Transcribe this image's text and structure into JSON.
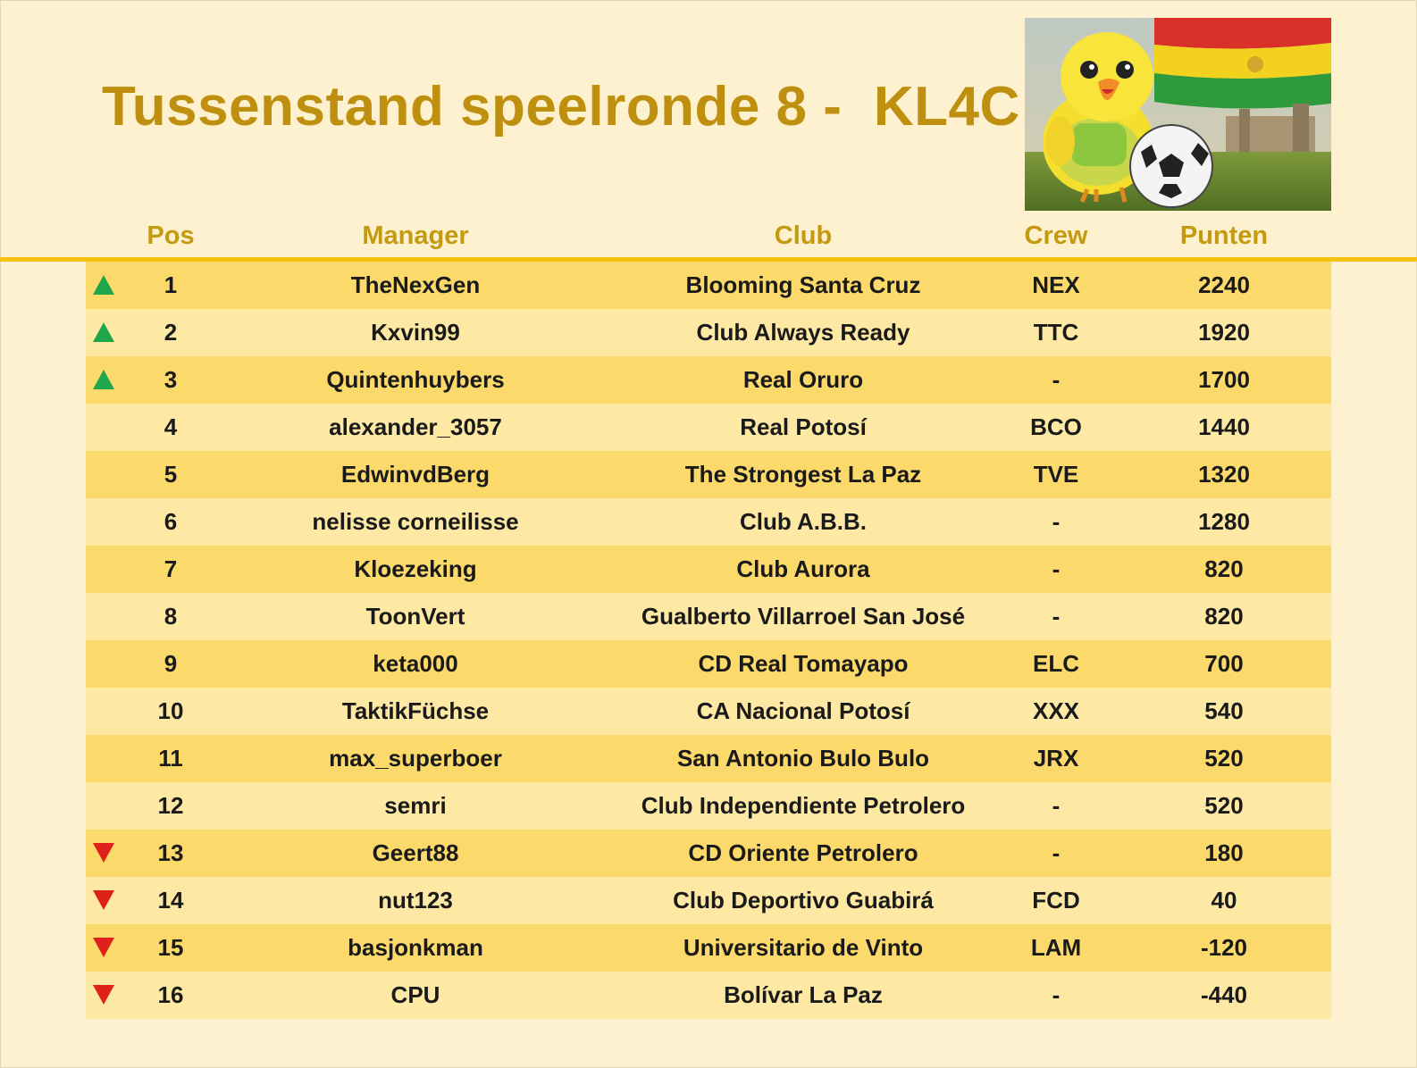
{
  "title": "Tussenstand speelronde 8 -  KL4C",
  "colors": {
    "background": "#fdf1cf",
    "title": "#bf900f",
    "rule": "#f5c30e",
    "row_dark": "#fcd96b",
    "row_light": "#fde9a3",
    "up": "#1fa64a",
    "down": "#e0201a"
  },
  "logo": {
    "icon": "canary-mascot-football-icon"
  },
  "columns": {
    "pos": "Pos",
    "manager": "Manager",
    "club": "Club",
    "crew": "Crew",
    "points": "Punten"
  },
  "rows": [
    {
      "trend": "up",
      "pos": "1",
      "manager": "TheNexGen",
      "club": "Blooming Santa Cruz",
      "crew": "NEX",
      "points": "2240"
    },
    {
      "trend": "up",
      "pos": "2",
      "manager": "Kxvin99",
      "club": "Club Always Ready",
      "crew": "TTC",
      "points": "1920"
    },
    {
      "trend": "up",
      "pos": "3",
      "manager": "Quintenhuybers",
      "club": "Real Oruro",
      "crew": "-",
      "points": "1700"
    },
    {
      "trend": "none",
      "pos": "4",
      "manager": "alexander_3057",
      "club": "Real Potosí",
      "crew": "BCO",
      "points": "1440"
    },
    {
      "trend": "none",
      "pos": "5",
      "manager": "EdwinvdBerg",
      "club": "The Strongest La Paz",
      "crew": "TVE",
      "points": "1320"
    },
    {
      "trend": "none",
      "pos": "6",
      "manager": "nelisse corneilisse",
      "club": "Club A.B.B.",
      "crew": "-",
      "points": "1280"
    },
    {
      "trend": "none",
      "pos": "7",
      "manager": "Kloezeking",
      "club": "Club Aurora",
      "crew": "-",
      "points": "820"
    },
    {
      "trend": "none",
      "pos": "8",
      "manager": "ToonVert",
      "club": "Gualberto Villarroel San José",
      "crew": "-",
      "points": "820"
    },
    {
      "trend": "none",
      "pos": "9",
      "manager": "keta000",
      "club": "CD Real Tomayapo",
      "crew": "ELC",
      "points": "700"
    },
    {
      "trend": "none",
      "pos": "10",
      "manager": "TaktikFüchse",
      "club": "CA Nacional Potosí",
      "crew": "XXX",
      "points": "540"
    },
    {
      "trend": "none",
      "pos": "11",
      "manager": "max_superboer",
      "club": "San Antonio Bulo Bulo",
      "crew": "JRX",
      "points": "520"
    },
    {
      "trend": "none",
      "pos": "12",
      "manager": "semri",
      "club": "Club Independiente Petrolero",
      "crew": "-",
      "points": "520"
    },
    {
      "trend": "down",
      "pos": "13",
      "manager": "Geert88",
      "club": "CD Oriente Petrolero",
      "crew": "-",
      "points": "180"
    },
    {
      "trend": "down",
      "pos": "14",
      "manager": "nut123",
      "club": "Club Deportivo Guabirá",
      "crew": "FCD",
      "points": "40"
    },
    {
      "trend": "down",
      "pos": "15",
      "manager": "basjonkman",
      "club": "Universitario de Vinto",
      "crew": "LAM",
      "points": "-120"
    },
    {
      "trend": "down",
      "pos": "16",
      "manager": "CPU",
      "club": "Bolívar La Paz",
      "crew": "-",
      "points": "-440"
    }
  ]
}
